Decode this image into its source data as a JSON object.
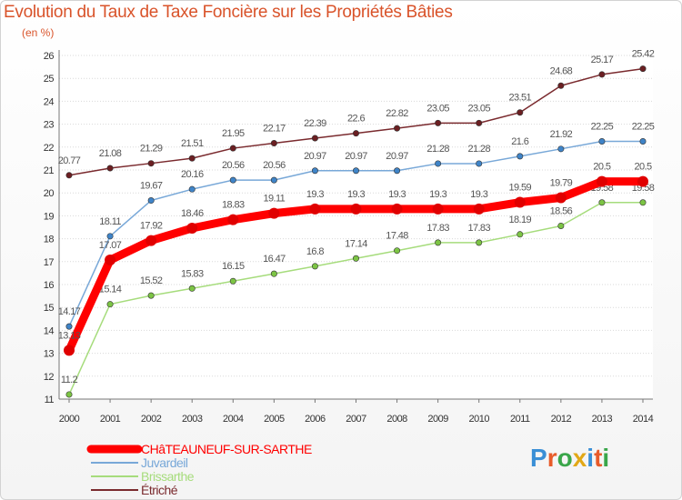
{
  "header": {
    "title": "Evolution du Taux de Taxe Foncière sur les Propriétés Bâties",
    "subtitle": "(en %)"
  },
  "brand": {
    "logo_text": "Proxiti",
    "letter_colors": [
      "#3a8fd6",
      "#e85b2a",
      "#3aa64a",
      "#e2a817",
      "#3a8fd6",
      "#e85b2a",
      "#3aa64a"
    ]
  },
  "chart_data": {
    "type": "line",
    "title": "Evolution du Taux de Taxe Foncière sur les Propriétés Bâties",
    "ylabel": "(en %)",
    "xlabel": "",
    "x": [
      "2000",
      "2001",
      "2002",
      "2003",
      "2004",
      "2005",
      "2006",
      "2007",
      "2008",
      "2009",
      "2010",
      "2011",
      "2012",
      "2013",
      "2014"
    ],
    "yticks": [
      "11",
      "12",
      "13",
      "14",
      "15",
      "16",
      "17",
      "18",
      "19",
      "20",
      "21",
      "22",
      "23",
      "24",
      "25",
      "26"
    ],
    "ylim": [
      11,
      26
    ],
    "grid": "horizontal",
    "legend_position": "bottom-left",
    "series": [
      {
        "name": "Étriché",
        "color": "#7a2a2e",
        "marker": "#6b1f22",
        "values": [
          20.77,
          21.08,
          21.29,
          21.51,
          21.95,
          22.17,
          22.39,
          22.6,
          22.82,
          23.05,
          23.05,
          23.51,
          24.68,
          25.17,
          25.42
        ],
        "labels": [
          "20.77",
          "21.08",
          "21.29",
          "21.51",
          "21.95",
          "22.17",
          "22.39",
          "22.6",
          "22.82",
          "23.05",
          "23.05",
          "23.51",
          "24.68",
          "25.17",
          "25.42"
        ]
      },
      {
        "name": "Juvardeil",
        "color": "#78a8d8",
        "marker": "#3f84c8",
        "values": [
          14.17,
          18.11,
          19.67,
          20.16,
          20.56,
          20.56,
          20.97,
          20.97,
          20.97,
          21.28,
          21.28,
          21.6,
          21.92,
          22.25,
          22.25
        ],
        "labels": [
          "14.17",
          "18.11",
          "19.67",
          "20.16",
          "20.56",
          "20.56",
          "20.97",
          "20.97",
          "20.97",
          "21.28",
          "21.28",
          "21.6",
          "21.92",
          "22.25",
          "22.25"
        ]
      },
      {
        "name": "Brissarthe",
        "color": "#a6dc7c",
        "marker": "#7cc444",
        "values": [
          11.2,
          15.14,
          15.52,
          15.83,
          16.15,
          16.47,
          16.8,
          17.14,
          17.48,
          17.83,
          17.83,
          18.19,
          18.56,
          19.58,
          19.58
        ],
        "labels": [
          "11.2",
          "15.14",
          "15.52",
          "15.83",
          "16.15",
          "16.47",
          "16.8",
          "17.14",
          "17.48",
          "17.83",
          "17.83",
          "18.19",
          "18.56",
          "19.58",
          "19.58"
        ]
      },
      {
        "name": "CHâTEAUNEUF-SUR-SARTHE",
        "color": "#ff0000",
        "marker": "#e00000",
        "values": [
          13.13,
          17.07,
          17.92,
          18.46,
          18.83,
          19.11,
          19.3,
          19.3,
          19.3,
          19.3,
          19.3,
          19.59,
          19.79,
          20.5,
          20.5
        ],
        "labels": [
          "13.13",
          "17.07",
          "17.92",
          "18.46",
          "18.83",
          "19.11",
          "19.3",
          "19.3",
          "19.3",
          "19.3",
          "19.3",
          "19.59",
          "19.79",
          "20.5",
          "20.5"
        ]
      }
    ],
    "legend": [
      "CHâTEAUNEUF-SUR-SARTHE",
      "Juvardeil",
      "Brissarthe",
      "Étriché"
    ]
  }
}
